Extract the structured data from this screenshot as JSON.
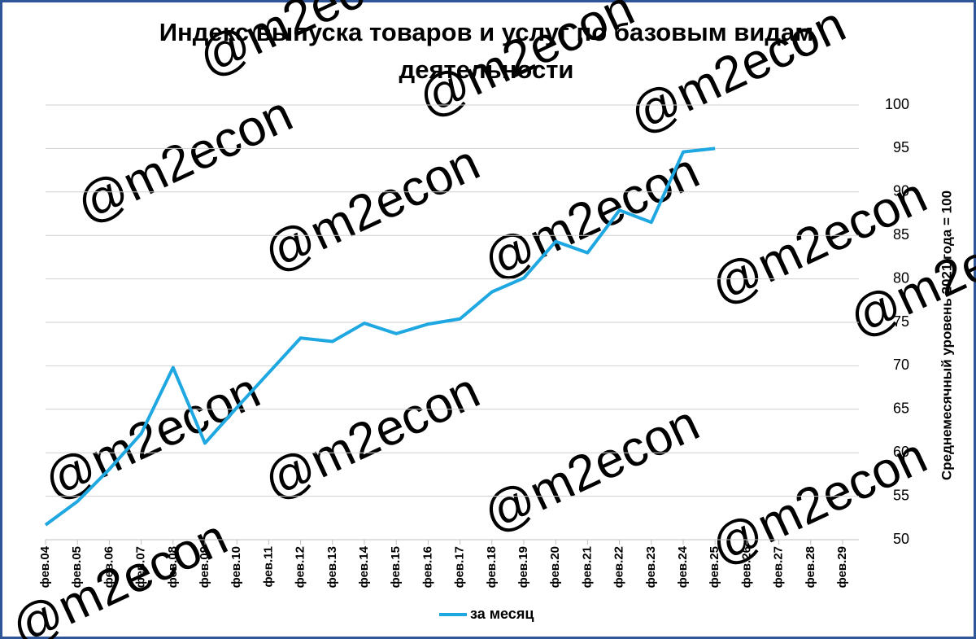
{
  "chart_data": {
    "type": "line",
    "title": "Индекс выпуска товаров и услуг по базовым видам деятельности",
    "title_lines": [
      "Индекс выпуска товаров и услуг по базовым видам",
      "деятельности"
    ],
    "y_axis_label": "Среднемесячный уровень 2021 года  =  100",
    "watermark": "@m2econ",
    "categories": [
      "фев.04",
      "фев.05",
      "фев.06",
      "фев.07",
      "фев.08",
      "фев.09",
      "фев.10",
      "фев.11",
      "фев.12",
      "фев.13",
      "фев.14",
      "фев.15",
      "фев.16",
      "фев.17",
      "фев.18",
      "фев.19",
      "фев.20",
      "фев.21",
      "фев.22",
      "фев.23",
      "фев.24",
      "фев.25",
      "фев.26",
      "фев.27",
      "фев.28",
      "фев.29"
    ],
    "series": [
      {
        "name": "за месяц",
        "color": "#1ea7e1",
        "values": [
          51.7,
          54.4,
          58.1,
          62.2,
          69.8,
          61.1,
          65.2,
          69.2,
          73.2,
          72.8,
          74.9,
          73.7,
          74.8,
          75.4,
          78.5,
          80.1,
          84.3,
          83.0,
          87.9,
          86.5,
          94.6,
          95.0,
          null,
          null,
          null,
          null
        ]
      }
    ],
    "ylim": [
      50,
      100
    ],
    "yticks": [
      50,
      55,
      60,
      65,
      70,
      75,
      80,
      85,
      90,
      95,
      100
    ],
    "y_axis_side": "right",
    "grid": true,
    "legend": "bottom"
  }
}
